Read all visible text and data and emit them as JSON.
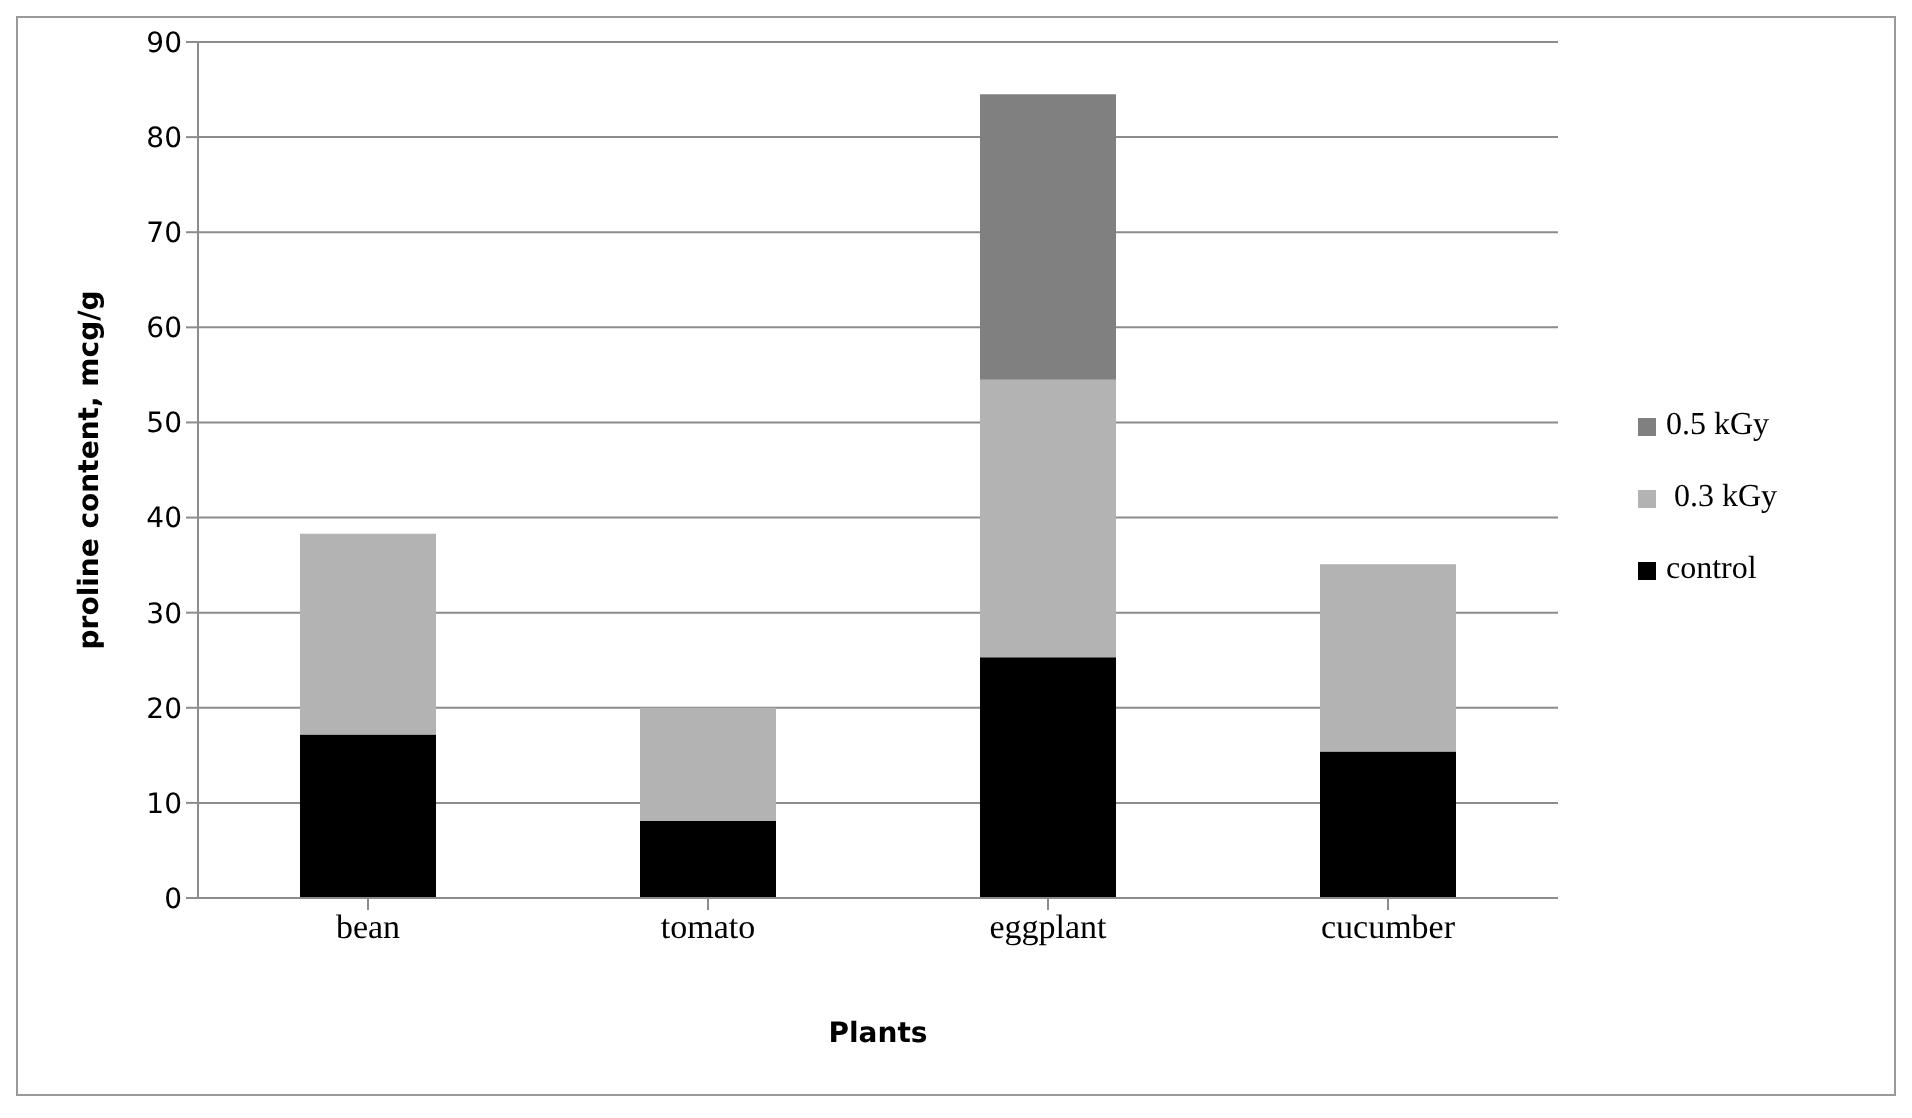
{
  "chart_data": {
    "type": "bar",
    "stacked": true,
    "categories": [
      "bean",
      "tomato",
      "eggplant",
      "cucumber"
    ],
    "series": [
      {
        "name": "control",
        "color": "#000000",
        "values": [
          17.2,
          8.1,
          25.3,
          15.4
        ]
      },
      {
        "name": " 0.3 kGy",
        "color": "#b3b3b3",
        "values": [
          21.1,
          11.9,
          29.2,
          19.7
        ]
      },
      {
        "name": "0.5 kGy",
        "color": "#808080",
        "values": [
          null,
          null,
          30,
          null
        ]
      }
    ],
    "xlabel": "Plants",
    "ylabel": "proline content, mcg/g",
    "ylim": [
      0,
      90
    ],
    "yticks": [
      0,
      10,
      20,
      30,
      40,
      50,
      60,
      70,
      80,
      90
    ],
    "grid": "y",
    "legend": "right"
  }
}
